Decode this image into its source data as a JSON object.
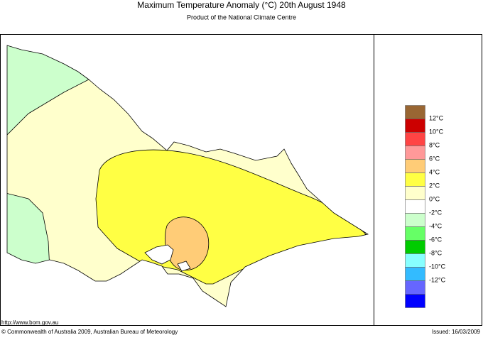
{
  "title": "Maximum Temperature Anomaly (°C)  20th August 1948",
  "subtitle": "Product of the National Climate Centre",
  "legend": {
    "labels": [
      "12°C",
      "10°C",
      "8°C",
      "6°C",
      "4°C",
      "2°C",
      "0°C",
      "-2°C",
      "-4°C",
      "-6°C",
      "-8°C",
      "-10°C",
      "-12°C"
    ],
    "colors": [
      "#996633",
      "#cc0000",
      "#ff4444",
      "#ff9999",
      "#ffcc77",
      "#ffff44",
      "#ffffcc",
      "#ffffff",
      "#ccffcc",
      "#66ff66",
      "#00cc00",
      "#88ffff",
      "#33bbff",
      "#6666ff",
      "#0000ff"
    ]
  },
  "footer": {
    "url": "http://www.bom.gov.au",
    "copyright": "© Commonwealth of Australia 2009, Australian Bureau of Meteorology",
    "issued": "Issued: 16/03/2009"
  }
}
